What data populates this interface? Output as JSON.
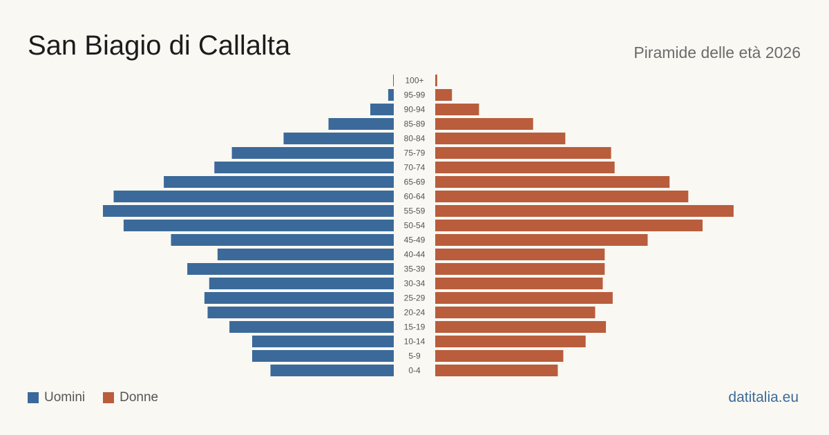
{
  "header": {
    "title": "San Biagio di Callalta",
    "subtitle": "Piramide delle età 2026"
  },
  "footer": {
    "brand": "datitalia.eu"
  },
  "colors": {
    "male": "#3b6a9a",
    "female": "#b95d3c"
  },
  "chart_data": {
    "type": "bar",
    "orientation": "horizontal-pyramid",
    "categories": [
      "100+",
      "95-99",
      "90-94",
      "85-89",
      "80-84",
      "75-79",
      "70-74",
      "65-69",
      "60-64",
      "55-59",
      "50-54",
      "45-49",
      "40-44",
      "35-39",
      "30-34",
      "25-29",
      "20-24",
      "15-19",
      "10-14",
      "5-9",
      "0-4"
    ],
    "series": [
      {
        "name": "Uomini",
        "values": [
          1,
          14,
          59,
          164,
          277,
          407,
          451,
          578,
          704,
          731,
          679,
          560,
          443,
          519,
          464,
          476,
          468,
          413,
          356,
          356,
          310
        ]
      },
      {
        "name": "Donne",
        "values": [
          5,
          42,
          110,
          246,
          327,
          442,
          451,
          589,
          636,
          750,
          672,
          534,
          426,
          426,
          421,
          446,
          402,
          429,
          378,
          322,
          308
        ]
      }
    ],
    "legend": "bottom-left",
    "grid": false
  }
}
